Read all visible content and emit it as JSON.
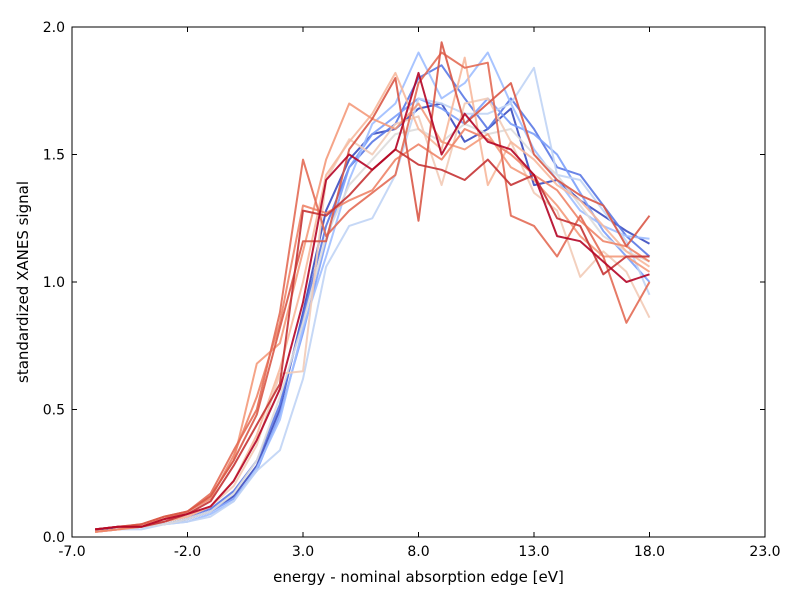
{
  "chart_data": {
    "type": "line",
    "xlabel": "energy - nominal absorption edge [eV]",
    "ylabel": "standardized XANES signal",
    "xlim": [
      -7.0,
      23.0
    ],
    "ylim": [
      0.0,
      2.0
    ],
    "xticks": [
      -7.0,
      -2.0,
      3.0,
      8.0,
      13.0,
      18.0,
      23.0
    ],
    "xtick_labels": [
      "-7.0",
      "-2.0",
      "3.0",
      "8.0",
      "13.0",
      "18.0",
      "23.0"
    ],
    "yticks": [
      0.0,
      0.5,
      1.0,
      1.5,
      2.0
    ],
    "ytick_labels": [
      "0.0",
      "0.5",
      "1.0",
      "1.5",
      "2.0"
    ],
    "grid": false,
    "legend": "none",
    "colormap": "coolwarm",
    "x": [
      -6,
      -5,
      -4,
      -3,
      -2,
      -1,
      0,
      1,
      2,
      3,
      4,
      5,
      6,
      7,
      8,
      9,
      10,
      11,
      12,
      13,
      14,
      15,
      16,
      17,
      18
    ],
    "series": [
      {
        "color": "#3b4cc0",
        "values": [
          0.03,
          0.03,
          0.04,
          0.05,
          0.07,
          0.1,
          0.16,
          0.28,
          0.5,
          0.88,
          1.28,
          1.48,
          1.58,
          1.6,
          1.68,
          1.7,
          1.55,
          1.6,
          1.68,
          1.38,
          1.4,
          1.32,
          1.26,
          1.2,
          1.15
        ]
      },
      {
        "color": "#5a78e4",
        "values": [
          0.03,
          0.04,
          0.04,
          0.06,
          0.08,
          0.11,
          0.18,
          0.3,
          0.52,
          0.86,
          1.22,
          1.45,
          1.55,
          1.62,
          1.8,
          1.85,
          1.72,
          1.6,
          1.72,
          1.6,
          1.45,
          1.42,
          1.3,
          1.18,
          1.1
        ]
      },
      {
        "color": "#7b9ff9",
        "values": [
          0.02,
          0.03,
          0.04,
          0.05,
          0.07,
          0.1,
          0.15,
          0.26,
          0.48,
          0.8,
          1.16,
          1.45,
          1.58,
          1.65,
          1.72,
          1.68,
          1.62,
          1.72,
          1.62,
          1.58,
          1.5,
          1.35,
          1.2,
          1.1,
          1.0
        ]
      },
      {
        "color": "#9ebeff",
        "values": [
          0.02,
          0.03,
          0.04,
          0.05,
          0.06,
          0.09,
          0.14,
          0.27,
          0.46,
          0.82,
          1.1,
          1.4,
          1.62,
          1.7,
          1.9,
          1.72,
          1.78,
          1.9,
          1.7,
          1.52,
          1.4,
          1.28,
          1.22,
          1.18,
          1.17
        ]
      },
      {
        "color": "#c0d4f5",
        "values": [
          0.02,
          0.03,
          0.03,
          0.05,
          0.06,
          0.08,
          0.14,
          0.26,
          0.34,
          0.62,
          1.06,
          1.22,
          1.25,
          1.42,
          1.72,
          1.7,
          1.66,
          1.66,
          1.7,
          1.84,
          1.42,
          1.4,
          1.28,
          1.16,
          0.95
        ]
      },
      {
        "color": "#dddcdc",
        "values": [
          0.02,
          0.03,
          0.04,
          0.05,
          0.07,
          0.1,
          0.17,
          0.3,
          0.55,
          0.84,
          1.18,
          1.38,
          1.48,
          1.58,
          1.6,
          1.55,
          1.62,
          1.58,
          1.6,
          1.5,
          1.42,
          1.3,
          1.18,
          1.12,
          1.08
        ]
      },
      {
        "color": "#f2cbb7",
        "values": [
          0.02,
          0.03,
          0.04,
          0.06,
          0.08,
          0.12,
          0.2,
          0.36,
          0.64,
          0.65,
          1.4,
          1.56,
          1.5,
          1.62,
          1.65,
          1.38,
          1.7,
          1.72,
          1.55,
          1.35,
          1.28,
          1.02,
          1.12,
          1.04,
          0.86
        ]
      },
      {
        "color": "#f7b89c",
        "values": [
          0.02,
          0.03,
          0.04,
          0.06,
          0.08,
          0.12,
          0.22,
          0.4,
          0.66,
          1.0,
          1.42,
          1.55,
          1.66,
          1.82,
          1.6,
          1.52,
          1.88,
          1.38,
          1.55,
          1.48,
          1.38,
          1.32,
          1.22,
          1.12,
          1.06
        ]
      },
      {
        "color": "#f49a7b",
        "values": [
          0.02,
          0.03,
          0.05,
          0.07,
          0.1,
          0.16,
          0.3,
          0.68,
          0.76,
          1.12,
          1.48,
          1.7,
          1.64,
          1.6,
          1.7,
          1.55,
          1.52,
          1.58,
          1.45,
          1.4,
          1.3,
          1.18,
          1.1,
          1.1,
          1.04
        ]
      },
      {
        "color": "#ee8468",
        "values": [
          0.02,
          0.03,
          0.04,
          0.07,
          0.1,
          0.15,
          0.32,
          0.55,
          0.84,
          1.3,
          1.27,
          1.32,
          1.36,
          1.48,
          1.54,
          1.48,
          1.6,
          1.56,
          1.5,
          1.42,
          1.36,
          1.24,
          1.16,
          1.14,
          1.08
        ]
      },
      {
        "color": "#e36c55",
        "values": [
          0.03,
          0.04,
          0.05,
          0.08,
          0.1,
          0.17,
          0.34,
          0.5,
          0.88,
          1.48,
          1.18,
          1.28,
          1.35,
          1.42,
          1.78,
          1.9,
          1.84,
          1.86,
          1.26,
          1.22,
          1.1,
          1.26,
          1.1,
          0.84,
          1.0
        ]
      },
      {
        "color": "#d95847",
        "values": [
          0.03,
          0.04,
          0.05,
          0.08,
          0.1,
          0.16,
          0.3,
          0.48,
          0.82,
          1.16,
          1.16,
          1.52,
          1.64,
          1.8,
          1.24,
          1.94,
          1.62,
          1.7,
          1.78,
          1.5,
          1.4,
          1.34,
          1.3,
          1.14,
          1.26
        ]
      },
      {
        "color": "#c53334",
        "values": [
          0.03,
          0.04,
          0.04,
          0.06,
          0.09,
          0.14,
          0.28,
          0.44,
          0.6,
          1.28,
          1.26,
          1.34,
          1.44,
          1.52,
          1.46,
          1.44,
          1.4,
          1.48,
          1.38,
          1.42,
          1.25,
          1.22,
          1.03,
          1.1,
          1.1
        ]
      },
      {
        "color": "#b40426",
        "values": [
          0.03,
          0.04,
          0.04,
          0.07,
          0.09,
          0.12,
          0.22,
          0.38,
          0.58,
          0.92,
          1.4,
          1.5,
          1.44,
          1.52,
          1.82,
          1.5,
          1.66,
          1.55,
          1.52,
          1.42,
          1.18,
          1.16,
          1.08,
          1.0,
          1.03
        ]
      }
    ]
  }
}
